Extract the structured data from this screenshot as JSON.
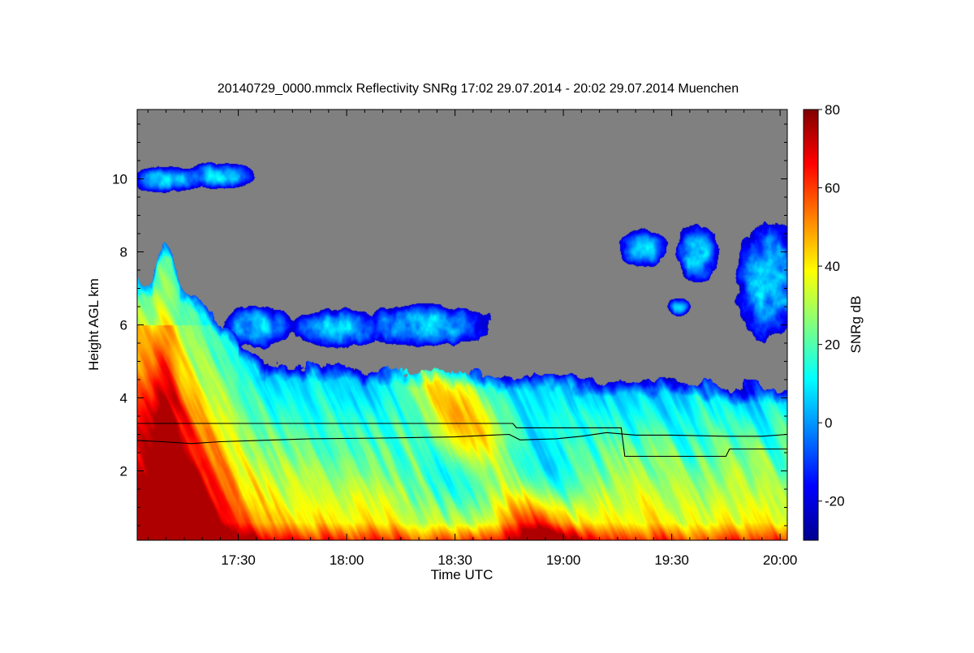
{
  "chart_data": {
    "type": "heatmap",
    "title": "20140729_0000.mmclx Reflectivity SNRg   17:02 29.07.2014 - 20:02 29.07.2014 Muenchen",
    "xlabel": "Time UTC",
    "ylabel": "Height AGL km",
    "colorbar_label": "SNRg dB",
    "x_range": [
      "17:02",
      "20:02"
    ],
    "y_range": [
      0.1,
      11.9
    ],
    "x_ticks": [
      "17:30",
      "18:00",
      "18:30",
      "19:00",
      "19:30",
      "20:00"
    ],
    "y_ticks": [
      "2",
      "4",
      "6",
      "8",
      "10"
    ],
    "colorbar_range": [
      -30,
      80
    ],
    "colorbar_ticks": [
      "-20",
      "0",
      "20",
      "40",
      "60",
      "80"
    ],
    "background_color": "#808080",
    "colormap": [
      "#00008f",
      "#0000ff",
      "#0080ff",
      "#00ffff",
      "#80ff80",
      "#ffff00",
      "#ff8000",
      "#ff0000",
      "#800000"
    ],
    "lines": [
      {
        "name": "",
        "points": [
          [
            "17:02",
            3.3
          ],
          [
            "18:46",
            3.3
          ],
          [
            "18:47",
            3.18
          ],
          [
            "19:16",
            3.18
          ],
          [
            "19:17",
            2.4
          ],
          [
            "19:45",
            2.4
          ],
          [
            "19:46",
            2.6
          ],
          [
            "20:02",
            2.6
          ]
        ]
      },
      {
        "name": "",
        "points": [
          [
            "17:02",
            2.83
          ],
          [
            "17:09",
            2.8
          ],
          [
            "17:17",
            2.75
          ],
          [
            "17:25",
            2.8
          ],
          [
            "17:35",
            2.83
          ],
          [
            "17:50",
            2.88
          ],
          [
            "18:10",
            2.9
          ],
          [
            "18:30",
            2.93
          ],
          [
            "18:40",
            2.98
          ],
          [
            "18:45",
            3.0
          ],
          [
            "18:48",
            2.85
          ],
          [
            "18:58",
            2.88
          ],
          [
            "19:05",
            2.95
          ],
          [
            "19:12",
            3.05
          ],
          [
            "19:20",
            2.98
          ],
          [
            "19:30",
            2.98
          ],
          [
            "19:45",
            2.95
          ],
          [
            "19:55",
            2.95
          ],
          [
            "20:02",
            3.0
          ]
        ]
      }
    ]
  }
}
